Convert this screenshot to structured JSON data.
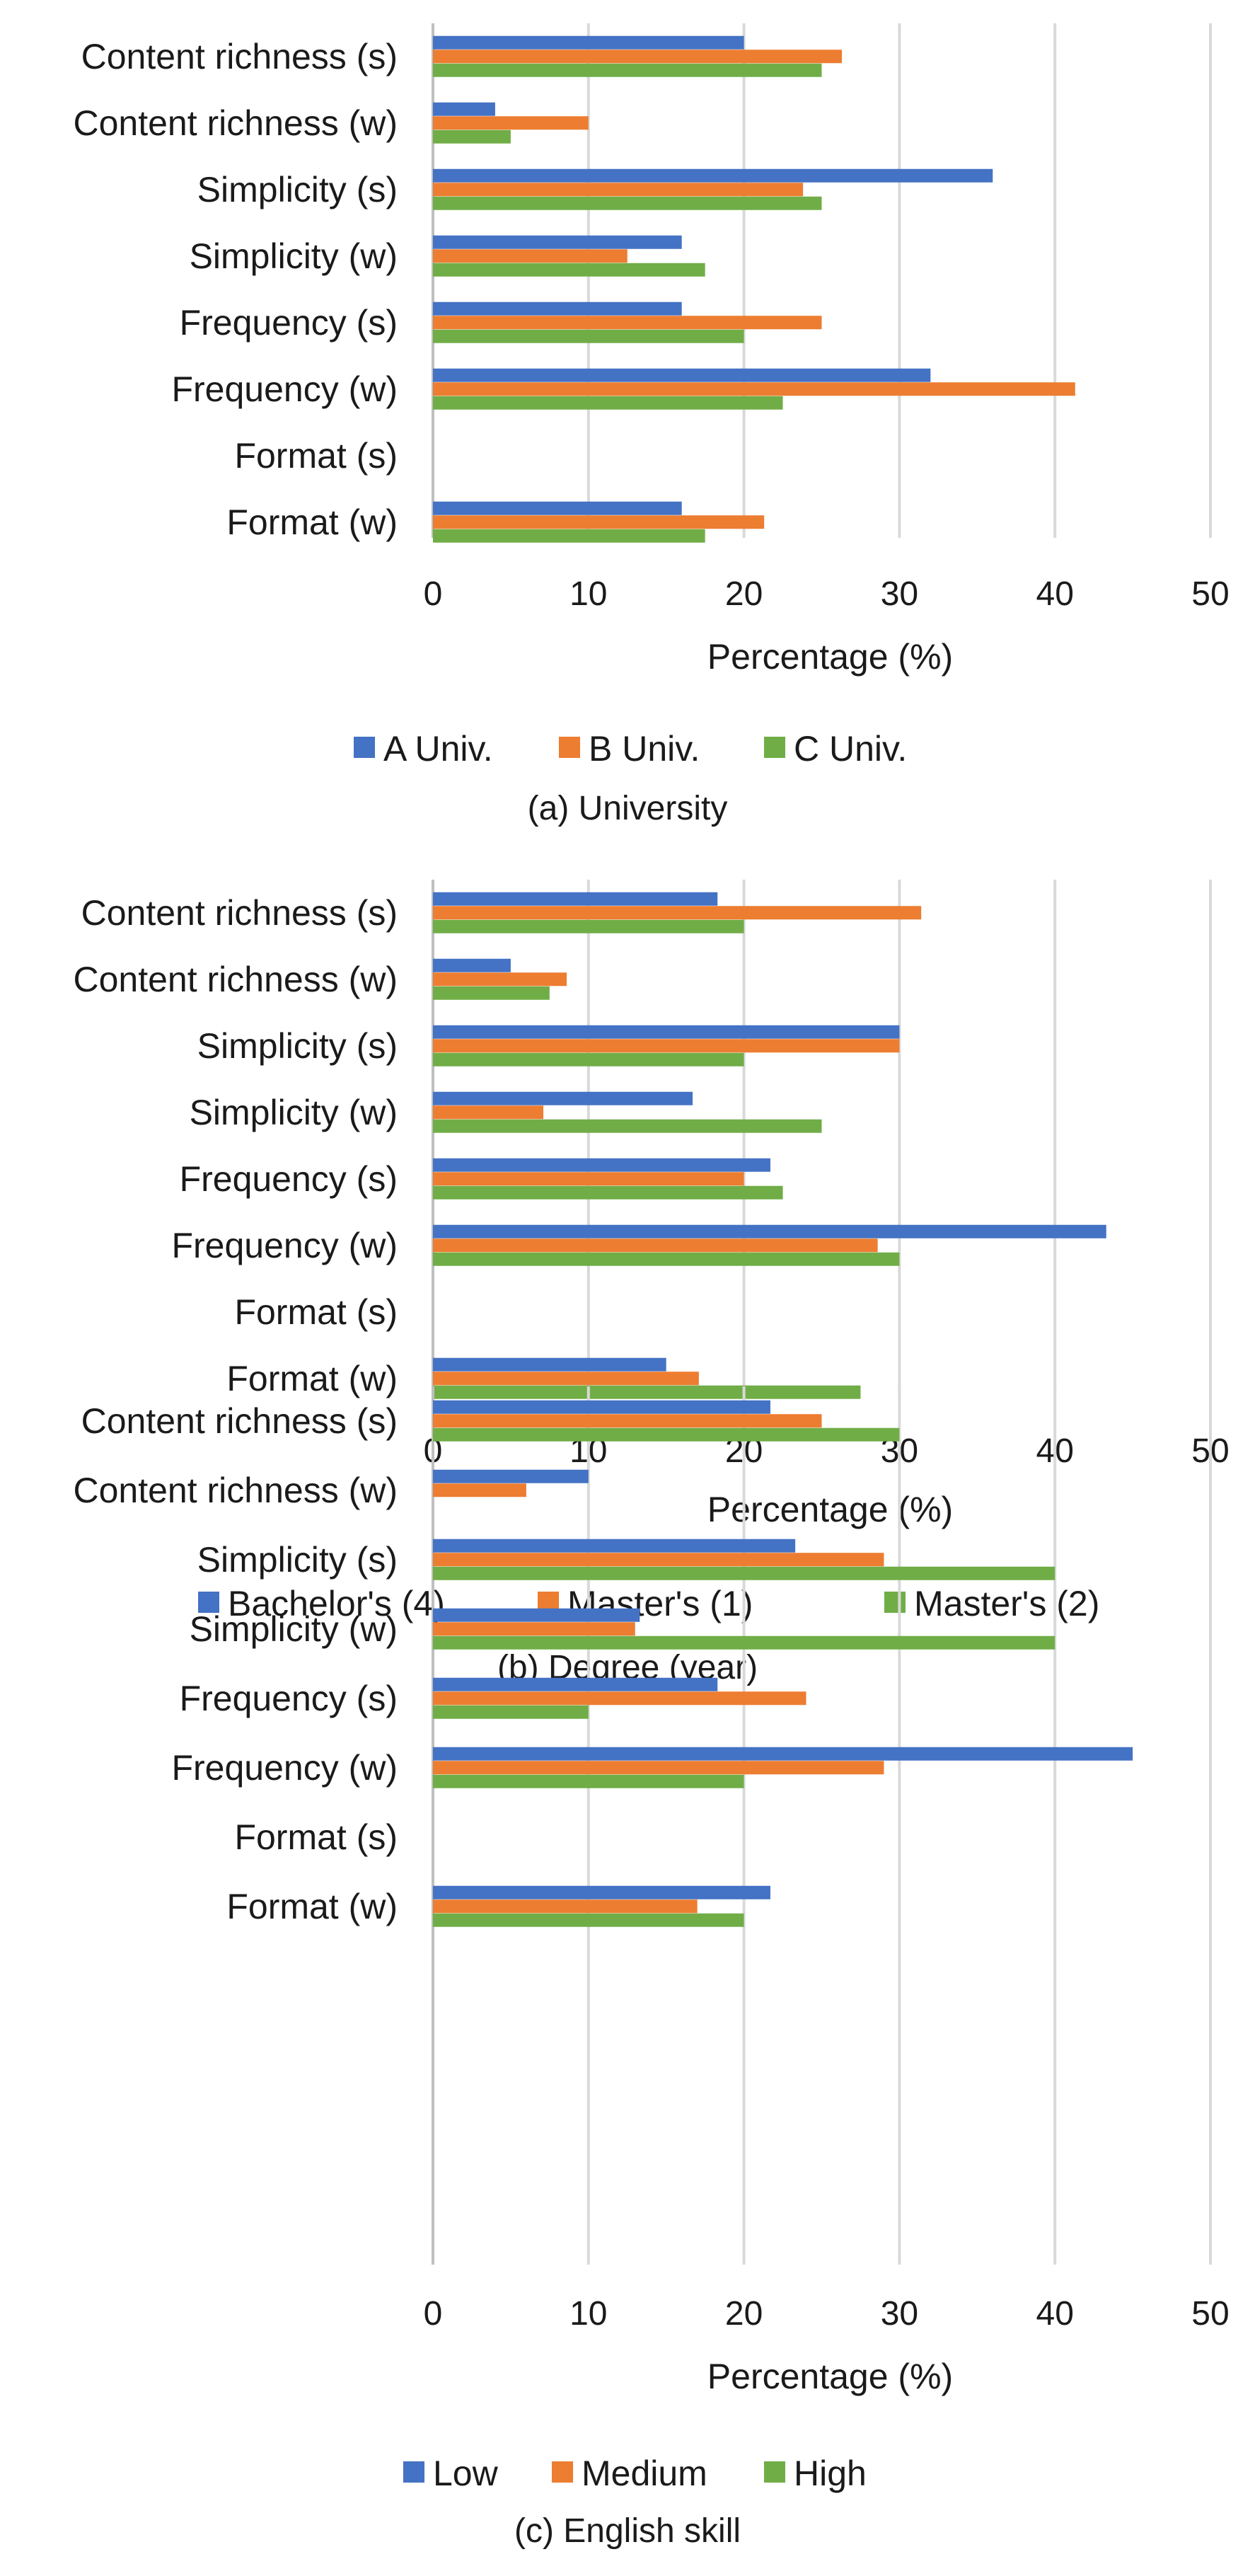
{
  "chart_data": [
    {
      "type": "bar",
      "orientation": "horizontal",
      "title": "",
      "caption": "(a) University",
      "categories": [
        "Content richness (s)",
        "Content richness (w)",
        "Simplicity (s)",
        "Simplicity (w)",
        "Frequency (s)",
        "Frequency (w)",
        "Format (s)",
        "Format (w)"
      ],
      "series": [
        {
          "name": "A Univ.",
          "color": "#4472C4",
          "values": [
            20,
            4,
            36,
            16,
            16,
            32,
            0,
            16
          ]
        },
        {
          "name": "B Univ.",
          "color": "#ED7D31",
          "values": [
            26.3,
            10,
            23.8,
            12.5,
            25,
            41.3,
            0,
            21.3
          ]
        },
        {
          "name": "C Univ.",
          "color": "#70AD47",
          "values": [
            25,
            5,
            25,
            17.5,
            20,
            22.5,
            0,
            17.5
          ]
        }
      ],
      "xlabel": "Percentage  (%)",
      "ylabel": "",
      "xlim": [
        0,
        50
      ],
      "xticks": [
        0,
        10,
        20,
        30,
        40,
        50
      ],
      "grid": true,
      "legend": "bottom"
    },
    {
      "type": "bar",
      "orientation": "horizontal",
      "title": "",
      "caption": "(b) Degree (year)",
      "categories": [
        "Content richness (s)",
        "Content richness (w)",
        "Simplicity (s)",
        "Simplicity (w)",
        "Frequency (s)",
        "Frequency (w)",
        "Format (s)",
        "Format (w)"
      ],
      "series": [
        {
          "name": "Bachelor's (4)",
          "color": "#4472C4",
          "values": [
            18.3,
            5,
            30,
            16.7,
            21.7,
            43.3,
            0,
            15
          ]
        },
        {
          "name": "Master's (1)",
          "color": "#ED7D31",
          "values": [
            31.4,
            8.6,
            30,
            7.1,
            20,
            28.6,
            0,
            17.1
          ]
        },
        {
          "name": "Master's (2)",
          "color": "#70AD47",
          "values": [
            20,
            7.5,
            20,
            25,
            22.5,
            30,
            0,
            27.5
          ]
        }
      ],
      "xlabel": "Percentage (%)",
      "ylabel": "",
      "xlim": [
        0,
        50
      ],
      "xticks": [
        0,
        10,
        20,
        30,
        40,
        50
      ],
      "grid": true,
      "legend": "bottom"
    },
    {
      "type": "bar",
      "orientation": "horizontal",
      "title": "",
      "caption": "(c) English skill",
      "categories": [
        "Content richness (s)",
        "Content richness (w)",
        "Simplicity (s)",
        "Simplicity (w)",
        "Frequency (s)",
        "Frequency (w)",
        "Format (s)",
        "Format (w)"
      ],
      "series": [
        {
          "name": "Low",
          "color": "#4472C4",
          "values": [
            21.7,
            10,
            23.3,
            13.3,
            18.3,
            45,
            0,
            21.7
          ]
        },
        {
          "name": "Medium",
          "color": "#ED7D31",
          "values": [
            25,
            6,
            29,
            13,
            24,
            29,
            0,
            17
          ]
        },
        {
          "name": "High",
          "color": "#70AD47",
          "values": [
            30,
            0,
            40,
            40,
            10,
            20,
            0,
            20
          ]
        }
      ],
      "xlabel": "Percentage (%)",
      "ylabel": "",
      "xlim": [
        0,
        50
      ],
      "xticks": [
        0,
        10,
        20,
        30,
        40,
        50
      ],
      "grid": true,
      "legend": "bottom"
    }
  ]
}
